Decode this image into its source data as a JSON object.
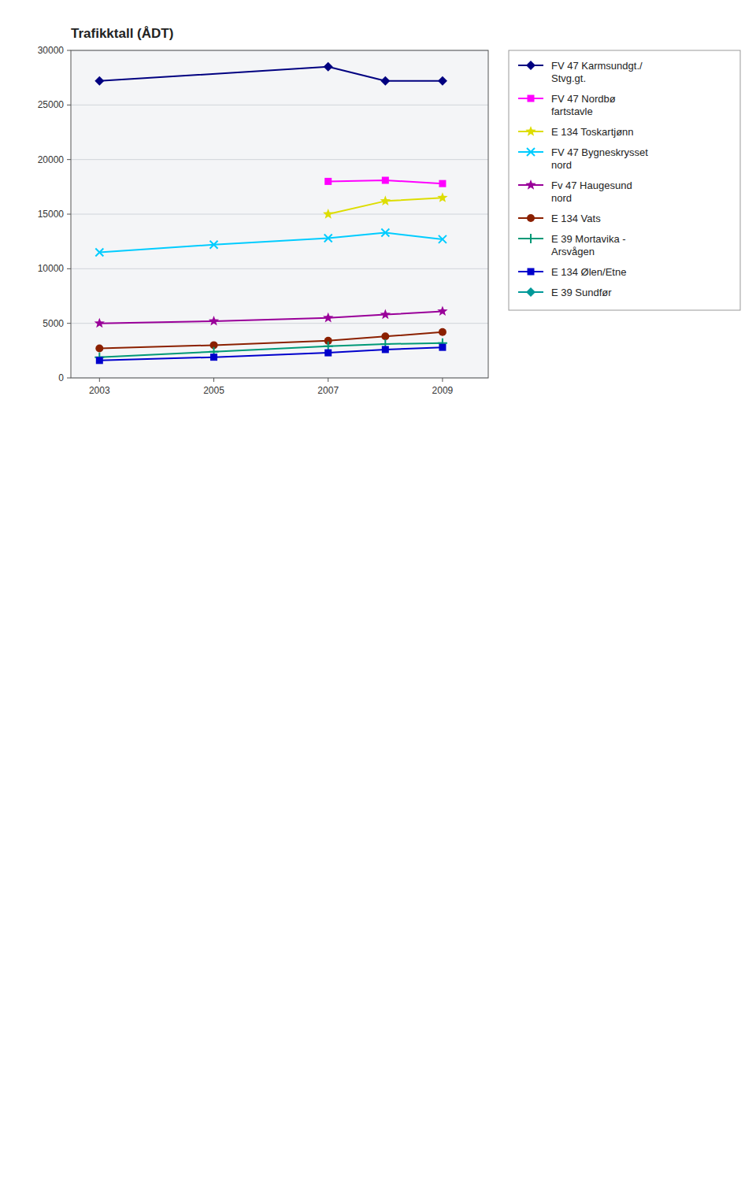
{
  "chart_data": {
    "type": "line",
    "title": "Trafikktall (ÅDT)",
    "series": [
      {
        "name": "FV 47 Karmsundgt./\nStvg.gt.",
        "color": "#000080",
        "marker": "diamond",
        "x": [
          2003,
          2007,
          2008,
          2009
        ],
        "values": [
          27200,
          28500,
          27200,
          27200
        ]
      },
      {
        "name": "FV 47 Nordbø\nfartstavle",
        "color": "#ff00ff",
        "marker": "square",
        "x": [
          2007,
          2008,
          2009
        ],
        "values": [
          18000,
          18100,
          17800
        ]
      },
      {
        "name": "E 134 Toskartjønn",
        "color": "#dddd00",
        "marker": "star",
        "x": [
          2007,
          2008,
          2009
        ],
        "values": [
          15000,
          16200,
          16500
        ]
      },
      {
        "name": "FV 47 Bygneskrysset\nnord",
        "color": "#00ccff",
        "marker": "x",
        "x": [
          2003,
          2005,
          2007,
          2008,
          2009
        ],
        "values": [
          11500,
          12200,
          12800,
          13300,
          12700
        ]
      },
      {
        "name": "Fv 47 Haugesund\nnord",
        "color": "#990099",
        "marker": "star",
        "x": [
          2003,
          2005,
          2007,
          2008,
          2009
        ],
        "values": [
          5000,
          5200,
          5500,
          5800,
          6100
        ]
      },
      {
        "name": "E 134 Vats",
        "color": "#8b2000",
        "marker": "circle",
        "x": [
          2003,
          2005,
          2007,
          2008,
          2009
        ],
        "values": [
          2700,
          3000,
          3400,
          3800,
          4200
        ]
      },
      {
        "name": "E 39 Mortavika -\nArsvågen",
        "color": "#009977",
        "marker": "plus",
        "x": [
          2003,
          2005,
          2007,
          2008,
          2009
        ],
        "values": [
          1900,
          2400,
          2900,
          3100,
          3200
        ]
      },
      {
        "name": "E 134 Ølen/Etne",
        "color": "#0000cc",
        "marker": "square",
        "x": [
          2003,
          2005,
          2007,
          2008,
          2009
        ],
        "values": [
          1600,
          1900,
          2300,
          2600,
          2800
        ]
      },
      {
        "name": "E 39 Sundfør",
        "color": "#009999",
        "marker": "diamond",
        "x": [],
        "values": []
      }
    ],
    "xlim": [
      2002.5,
      2009.8
    ],
    "xticks": [
      2003,
      2005,
      2007,
      2009
    ],
    "ylim": [
      0,
      30000
    ],
    "yticks": [
      0,
      5000,
      10000,
      15000,
      20000,
      25000,
      30000
    ],
    "grid": true,
    "legend": "right"
  }
}
